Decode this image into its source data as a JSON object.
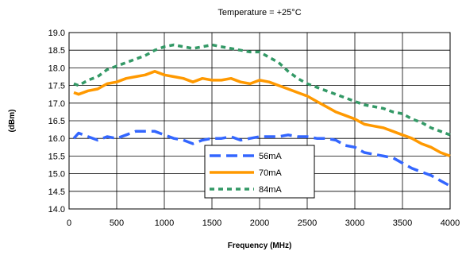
{
  "chart_data": {
    "type": "line",
    "title": "Temperature = +25°C",
    "xlabel": "Frequency (MHz)",
    "ylabel": "(dBm)",
    "xlim": [
      0,
      4000
    ],
    "ylim": [
      14.0,
      19.0
    ],
    "grid": true,
    "legend_position": "lower-center",
    "x_ticks": [
      0,
      500,
      1000,
      1500,
      2000,
      2500,
      3000,
      3500,
      4000
    ],
    "y_ticks": [
      14.0,
      14.5,
      15.0,
      15.5,
      16.0,
      16.5,
      17.0,
      17.5,
      18.0,
      18.5,
      19.0
    ],
    "y_tick_labels": [
      "14.0",
      "14.5",
      "15.0",
      "15.5",
      "16.0",
      "16.5",
      "17.0",
      "17.5",
      "18.0",
      "18.5",
      "19.0"
    ],
    "series": [
      {
        "name": "56mA",
        "color": "#3366FF",
        "dash": "dashed",
        "x": [
          50,
          100,
          200,
          300,
          400,
          500,
          600,
          700,
          800,
          900,
          1000,
          1100,
          1200,
          1300,
          1400,
          1500,
          1600,
          1700,
          1800,
          1900,
          2000,
          2100,
          2200,
          2300,
          2400,
          2500,
          2600,
          2700,
          2800,
          2900,
          3000,
          3100,
          3200,
          3300,
          3400,
          3500,
          3600,
          3700,
          3800,
          3900,
          4000
        ],
        "values": [
          16.0,
          16.15,
          16.05,
          15.95,
          16.05,
          16.0,
          16.1,
          16.2,
          16.2,
          16.2,
          16.1,
          16.0,
          15.95,
          15.85,
          15.95,
          16.0,
          16.0,
          16.05,
          15.95,
          16.0,
          16.05,
          16.05,
          16.05,
          16.1,
          16.05,
          16.05,
          16.0,
          16.0,
          15.95,
          15.8,
          15.75,
          15.6,
          15.55,
          15.5,
          15.45,
          15.3,
          15.15,
          15.05,
          14.95,
          14.8,
          14.65
        ]
      },
      {
        "name": "70mA",
        "color": "#FF9900",
        "dash": "solid",
        "x": [
          50,
          100,
          200,
          300,
          400,
          500,
          600,
          700,
          800,
          900,
          1000,
          1100,
          1200,
          1300,
          1400,
          1500,
          1600,
          1700,
          1800,
          1900,
          2000,
          2100,
          2200,
          2300,
          2400,
          2500,
          2600,
          2700,
          2800,
          2900,
          3000,
          3100,
          3200,
          3300,
          3400,
          3500,
          3600,
          3700,
          3800,
          3900,
          4000
        ],
        "values": [
          17.3,
          17.25,
          17.35,
          17.4,
          17.55,
          17.6,
          17.7,
          17.75,
          17.8,
          17.9,
          17.8,
          17.75,
          17.7,
          17.6,
          17.7,
          17.65,
          17.65,
          17.7,
          17.6,
          17.55,
          17.65,
          17.6,
          17.5,
          17.4,
          17.3,
          17.2,
          17.05,
          16.9,
          16.75,
          16.65,
          16.55,
          16.4,
          16.35,
          16.3,
          16.2,
          16.1,
          16.0,
          15.85,
          15.75,
          15.6,
          15.5
        ]
      },
      {
        "name": "84mA",
        "color": "#339966",
        "dash": "dotted",
        "x": [
          50,
          100,
          200,
          300,
          400,
          500,
          600,
          700,
          800,
          900,
          1000,
          1100,
          1200,
          1300,
          1400,
          1500,
          1600,
          1700,
          1800,
          1900,
          2000,
          2100,
          2200,
          2300,
          2400,
          2500,
          2600,
          2700,
          2800,
          2900,
          3000,
          3100,
          3200,
          3300,
          3400,
          3500,
          3600,
          3700,
          3800,
          3900,
          4000
        ],
        "values": [
          17.55,
          17.5,
          17.65,
          17.75,
          17.95,
          18.05,
          18.15,
          18.25,
          18.35,
          18.5,
          18.6,
          18.65,
          18.6,
          18.55,
          18.6,
          18.65,
          18.6,
          18.55,
          18.5,
          18.45,
          18.45,
          18.3,
          18.15,
          17.9,
          17.7,
          17.55,
          17.45,
          17.35,
          17.25,
          17.15,
          17.05,
          16.95,
          16.9,
          16.85,
          16.75,
          16.7,
          16.55,
          16.45,
          16.3,
          16.2,
          16.1
        ]
      }
    ]
  }
}
